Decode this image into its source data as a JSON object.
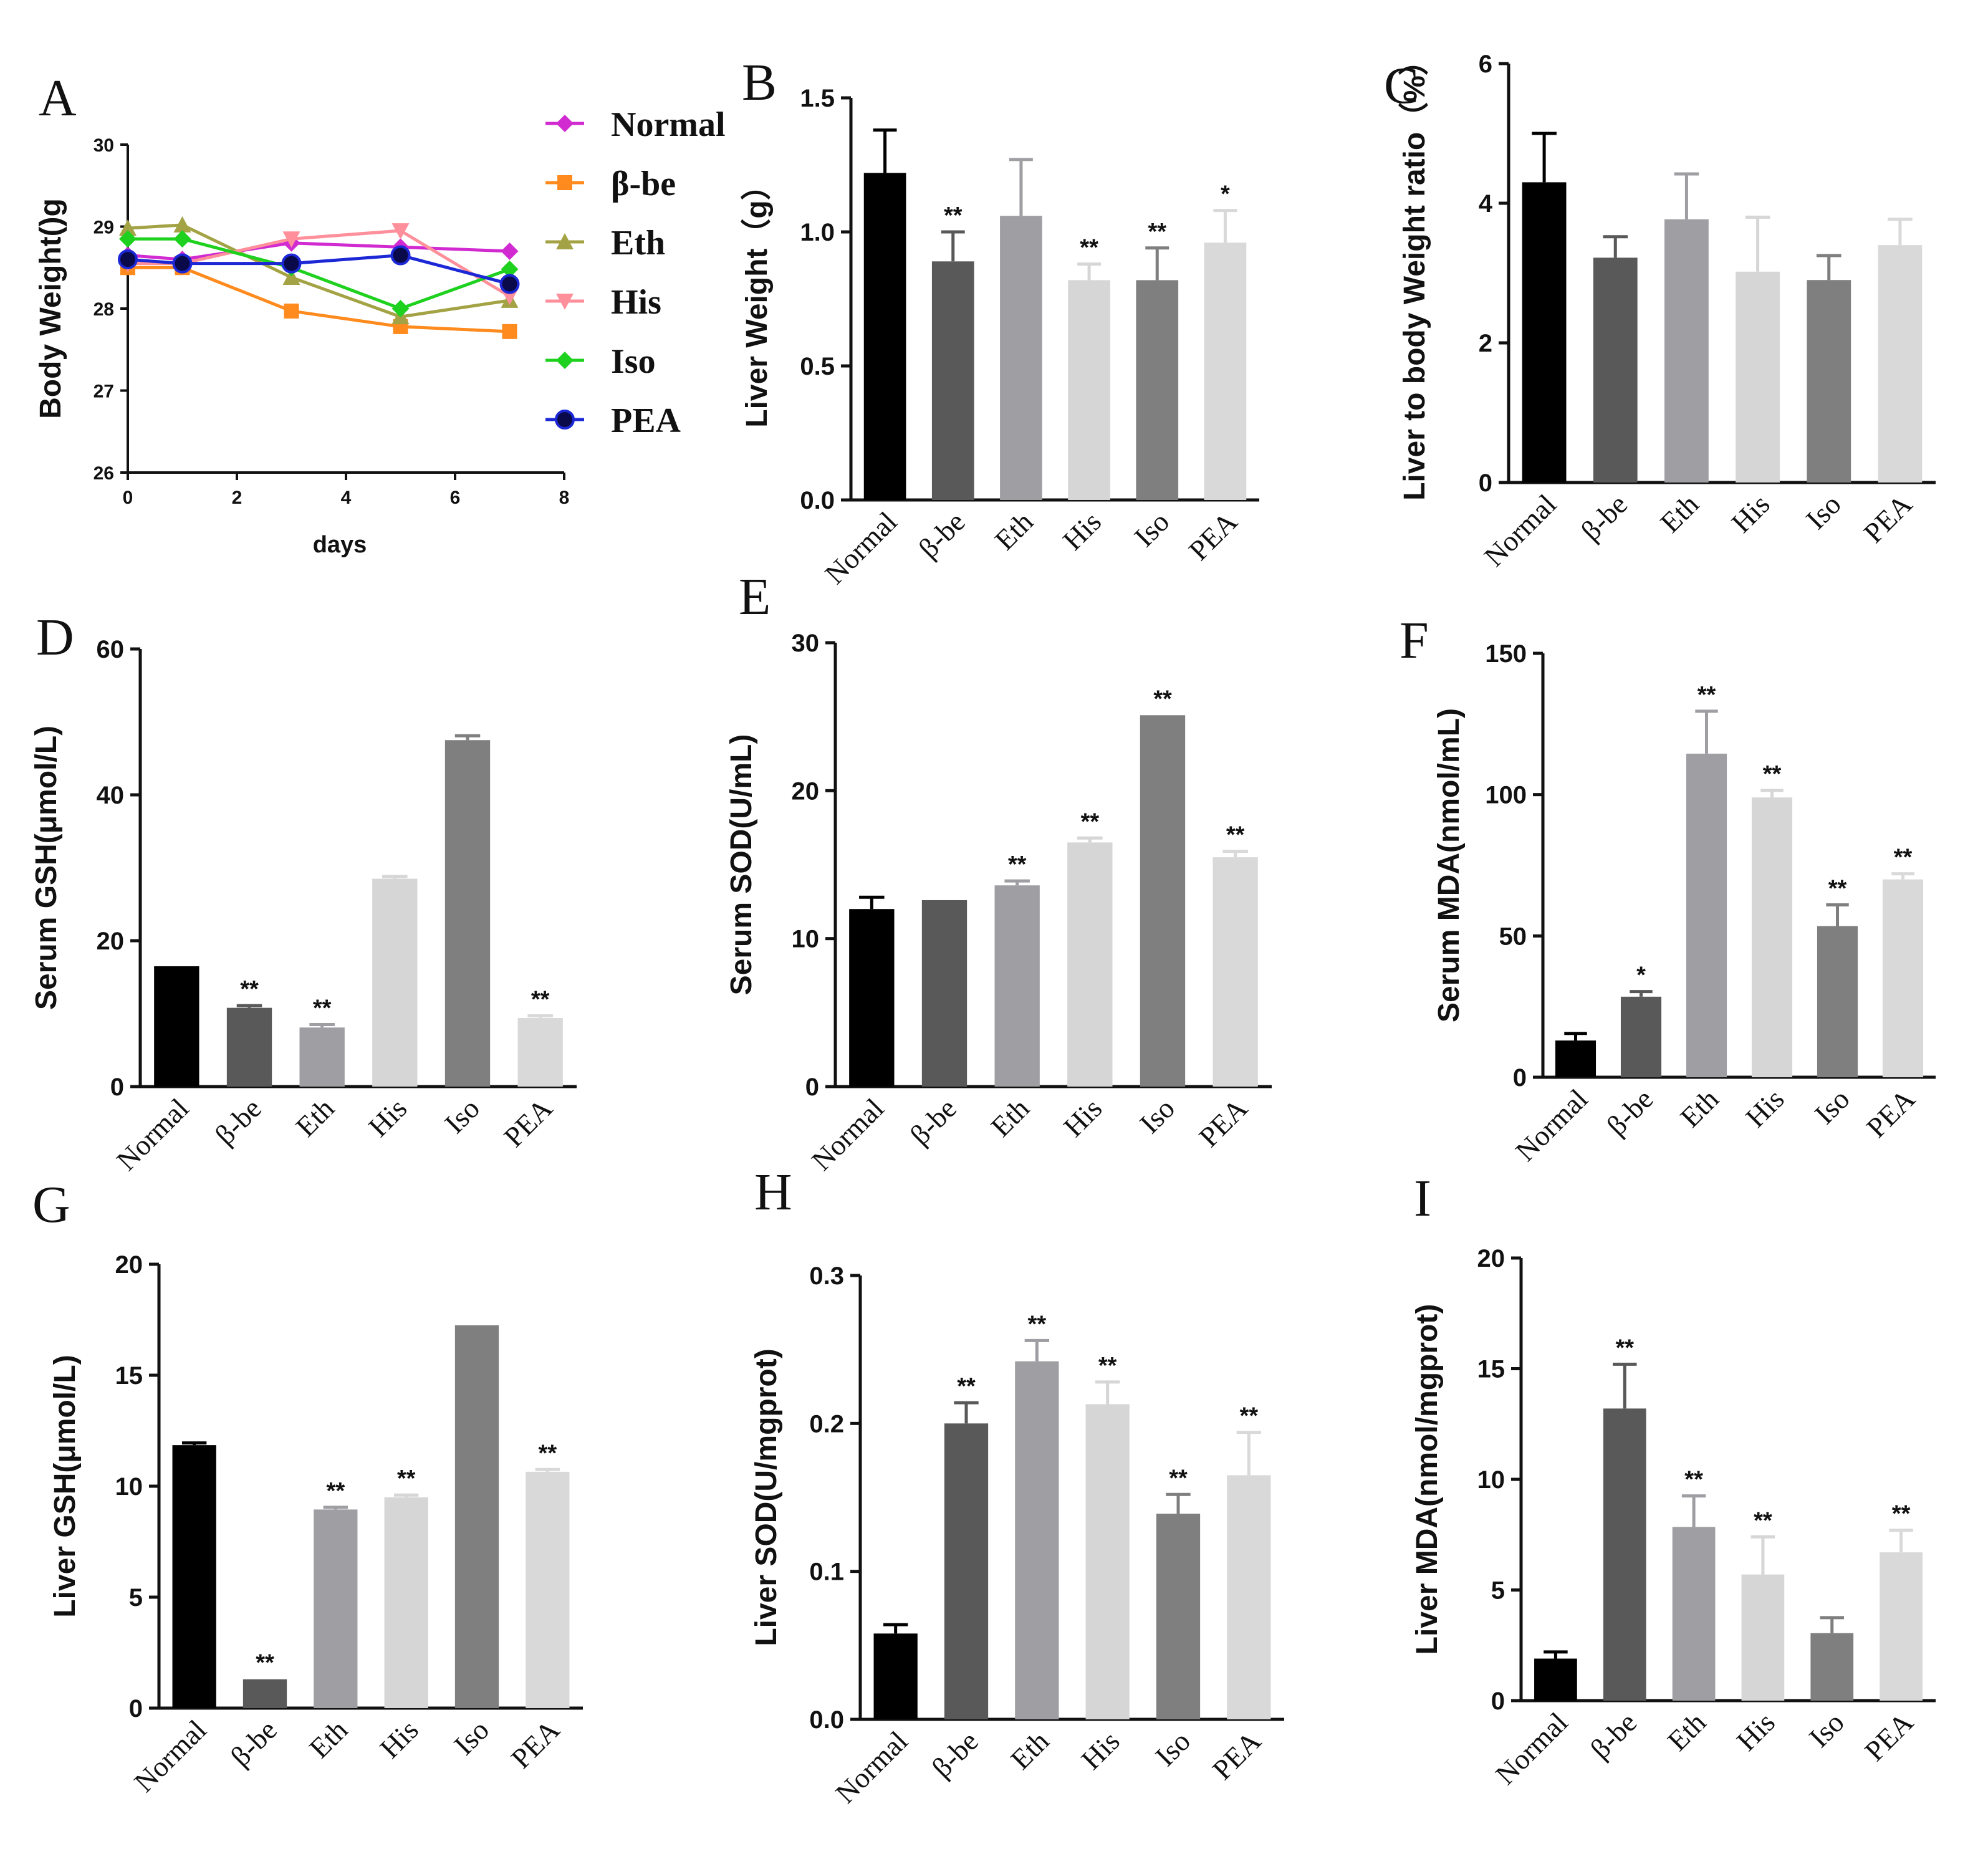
{
  "colors": {
    "normal": "#000000",
    "bbe": "#595959",
    "eth": "#9e9ea3",
    "his": "#d6d6d6",
    "iso": "#7f7f7f",
    "pea": "#d9d9d9"
  },
  "line_colors": {
    "Normal": "#d12ad1",
    "β-be": "#ff8a1e",
    "Eth": "#a3a345",
    "His": "#ff8f9a",
    "Iso": "#1fd11f",
    "PEA": "#1c28d6"
  },
  "chart_data": [
    {
      "id": "A",
      "type": "line",
      "panel_label": "A",
      "ylabel": "Body Weight()g",
      "xlabel": "days",
      "xlim": [
        0,
        8
      ],
      "ylim": [
        26,
        30
      ],
      "xticks": [
        "0",
        "2",
        "4",
        "6",
        "8"
      ],
      "yticks": [
        "26",
        "27",
        "28",
        "29",
        "30"
      ],
      "x": [
        0,
        1,
        3,
        5,
        7
      ],
      "series": [
        {
          "name": "Normal",
          "marker": "diamond",
          "values": [
            28.65,
            28.6,
            28.8,
            28.75,
            28.7
          ]
        },
        {
          "name": "β-be",
          "marker": "square",
          "values": [
            28.5,
            28.5,
            27.97,
            27.78,
            27.72
          ]
        },
        {
          "name": "Eth",
          "marker": "triangle",
          "values": [
            28.98,
            29.02,
            28.38,
            27.9,
            28.1
          ]
        },
        {
          "name": "His",
          "marker": "triangle-down",
          "values": [
            28.55,
            28.55,
            28.85,
            28.95,
            28.15
          ]
        },
        {
          "name": "Iso",
          "marker": "diamond",
          "values": [
            28.85,
            28.85,
            28.5,
            28.0,
            28.48
          ]
        },
        {
          "name": "PEA",
          "marker": "circle",
          "values": [
            28.6,
            28.55,
            28.55,
            28.65,
            28.3
          ]
        }
      ]
    },
    {
      "id": "B",
      "type": "bar",
      "panel_label": "B",
      "ylabel": "Liver Weight（g）",
      "ylim": [
        0,
        1.5
      ],
      "yticks": [
        "0.0",
        "0.5",
        "1.0",
        "1.5"
      ],
      "categories": [
        "Normal",
        "β-be",
        "Eth",
        "His",
        "Iso",
        "PEA"
      ],
      "values": [
        1.22,
        0.89,
        1.06,
        0.82,
        0.82,
        0.96
      ],
      "errors": [
        0.16,
        0.11,
        0.21,
        0.06,
        0.12,
        0.12
      ],
      "significance": [
        "",
        "**",
        "",
        "**",
        "**",
        "*"
      ]
    },
    {
      "id": "C",
      "type": "bar",
      "panel_label": "C",
      "ylabel": "Liver to body Weight ratio（%）",
      "ylim": [
        0,
        6
      ],
      "yticks": [
        "0",
        "2",
        "4",
        "6"
      ],
      "categories": [
        "Normal",
        "β-be",
        "Eth",
        "His",
        "Iso",
        "PEA"
      ],
      "values": [
        4.3,
        3.22,
        3.77,
        3.02,
        2.9,
        3.4
      ],
      "errors": [
        0.7,
        0.3,
        0.65,
        0.78,
        0.35,
        0.37
      ],
      "significance": [
        "",
        "",
        "",
        "",
        "",
        ""
      ]
    },
    {
      "id": "D",
      "type": "bar",
      "panel_label": "D",
      "ylabel": "Serum GSH(μmol/L)",
      "ylim": [
        0,
        60
      ],
      "yticks": [
        "0",
        "20",
        "40",
        "60"
      ],
      "categories": [
        "Normal",
        "β-be",
        "Eth",
        "His",
        "Iso",
        "PEA"
      ],
      "values": [
        16.5,
        10.8,
        8.1,
        28.5,
        47.5,
        9.4
      ],
      "errors": [
        0,
        0.3,
        0.4,
        0.3,
        0.6,
        0.3
      ],
      "significance": [
        "",
        "**",
        "**",
        "",
        "",
        "**"
      ]
    },
    {
      "id": "E",
      "type": "bar",
      "panel_label": "E",
      "ylabel": "Serum SOD(U/mL)",
      "ylim": [
        0,
        30
      ],
      "yticks": [
        "0",
        "10",
        "20",
        "30"
      ],
      "categories": [
        "Normal",
        "β-be",
        "Eth",
        "His",
        "Iso",
        "PEA"
      ],
      "values": [
        12.0,
        12.6,
        13.6,
        16.5,
        25.1,
        15.5
      ],
      "errors": [
        0.8,
        0,
        0.3,
        0.3,
        0,
        0.4
      ],
      "significance": [
        "",
        "",
        "**",
        "**",
        "**",
        "**"
      ]
    },
    {
      "id": "F",
      "type": "bar",
      "panel_label": "F",
      "ylabel": "Serum MDA(nmol/mL)",
      "ylim": [
        0,
        150
      ],
      "yticks": [
        "0",
        "50",
        "100",
        "150"
      ],
      "categories": [
        "Normal",
        "β-be",
        "Eth",
        "His",
        "Iso",
        "PEA"
      ],
      "values": [
        13.0,
        28.5,
        114.5,
        99.0,
        53.5,
        70.0
      ],
      "errors": [
        2.5,
        1.8,
        15.0,
        2.5,
        7.5,
        2.0
      ],
      "significance": [
        "",
        "*",
        "**",
        "**",
        "**",
        "**"
      ]
    },
    {
      "id": "G",
      "type": "bar",
      "panel_label": "G",
      "ylabel": "Liver GSH(μmol/L)",
      "ylim": [
        0,
        20
      ],
      "yticks": [
        "0",
        "5",
        "10",
        "15",
        "20"
      ],
      "categories": [
        "Normal",
        "β-be",
        "Eth",
        "His",
        "Iso",
        "PEA"
      ],
      "values": [
        11.85,
        1.3,
        8.95,
        9.5,
        17.25,
        10.65
      ],
      "errors": [
        0.1,
        0,
        0.1,
        0.1,
        0,
        0.1
      ],
      "significance": [
        "",
        "**",
        "**",
        "**",
        "",
        "**"
      ]
    },
    {
      "id": "H",
      "type": "bar",
      "panel_label": "H",
      "ylabel": "Liver SOD(U/mgprot)",
      "ylim": [
        0,
        0.3
      ],
      "yticks": [
        "0.0",
        "0.1",
        "0.2",
        "0.3"
      ],
      "categories": [
        "Normal",
        "β-be",
        "Eth",
        "His",
        "Iso",
        "PEA"
      ],
      "values": [
        0.058,
        0.2,
        0.242,
        0.213,
        0.139,
        0.165
      ],
      "errors": [
        0.006,
        0.014,
        0.014,
        0.015,
        0.013,
        0.029
      ],
      "significance": [
        "",
        "**",
        "**",
        "**",
        "**",
        "**"
      ]
    },
    {
      "id": "I",
      "type": "bar",
      "panel_label": "I",
      "ylabel": "Liver MDA(nmol/mgprot)",
      "ylim": [
        0,
        20
      ],
      "yticks": [
        "0",
        "5",
        "10",
        "15",
        "20"
      ],
      "categories": [
        "Normal",
        "β-be",
        "Eth",
        "His",
        "Iso",
        "PEA"
      ],
      "values": [
        1.9,
        13.2,
        7.85,
        5.7,
        3.05,
        6.7
      ],
      "errors": [
        0.3,
        2.0,
        1.4,
        1.7,
        0.7,
        1.0
      ],
      "significance": [
        "",
        "**",
        "**",
        "**",
        "",
        "**"
      ]
    }
  ]
}
